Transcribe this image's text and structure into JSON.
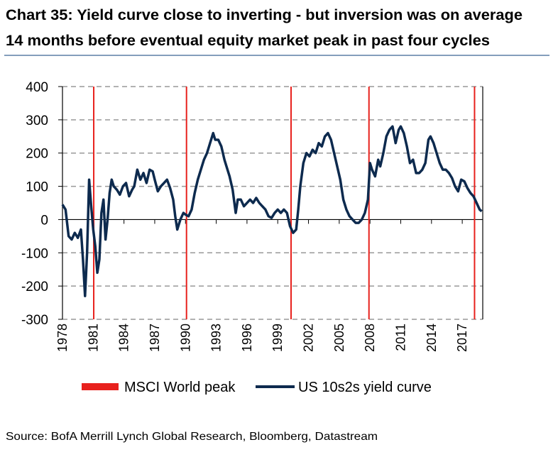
{
  "chart_data": {
    "type": "line",
    "title": [
      "Chart 35: Yield curve close to inverting - but inversion was on average",
      "14 months before eventual equity market peak in past four cycles"
    ],
    "source": "Source: BofA Merrill Lynch Global Research, Bloomberg, Datastream",
    "xlim": [
      1978,
      2019
    ],
    "xticks": [
      1978,
      1981,
      1984,
      1987,
      1990,
      1993,
      1996,
      1999,
      2002,
      2005,
      2008,
      2011,
      2014,
      2017
    ],
    "ylim": [
      -300,
      400
    ],
    "yticks": [
      -300,
      -200,
      -100,
      0,
      100,
      200,
      300,
      400
    ],
    "grid": true,
    "legend": "bottom",
    "series": [
      {
        "name": "MSCI World peak",
        "type": "vline",
        "color": "#e8211d",
        "x": [
          1981.05,
          1990.1,
          2000.3,
          2007.9,
          2018.2
        ]
      },
      {
        "name": "US 10s2s  yield curve",
        "type": "line",
        "color": "#0d2a4e",
        "x": [
          1978.0,
          1978.3,
          1978.6,
          1978.9,
          1979.2,
          1979.5,
          1979.8,
          1980.0,
          1980.2,
          1980.4,
          1980.6,
          1980.8,
          1981.0,
          1981.2,
          1981.4,
          1981.6,
          1981.8,
          1982.0,
          1982.2,
          1982.4,
          1982.6,
          1982.8,
          1983.0,
          1983.3,
          1983.6,
          1983.9,
          1984.2,
          1984.5,
          1984.8,
          1985.0,
          1985.3,
          1985.6,
          1985.9,
          1986.2,
          1986.5,
          1986.8,
          1987.0,
          1987.3,
          1987.6,
          1987.9,
          1988.2,
          1988.5,
          1988.8,
          1989.0,
          1989.2,
          1989.5,
          1989.8,
          1990.0,
          1990.3,
          1990.6,
          1990.9,
          1991.2,
          1991.5,
          1991.8,
          1992.1,
          1992.4,
          1992.7,
          1992.9,
          1993.2,
          1993.5,
          1993.8,
          1994.0,
          1994.3,
          1994.6,
          1994.9,
          1995.1,
          1995.4,
          1995.7,
          1996.0,
          1996.3,
          1996.6,
          1996.9,
          1997.2,
          1997.5,
          1997.8,
          1998.1,
          1998.4,
          1998.7,
          1999.0,
          1999.3,
          1999.6,
          1999.9,
          2000.2,
          2000.5,
          2000.8,
          2001.0,
          2001.2,
          2001.5,
          2001.8,
          2002.1,
          2002.4,
          2002.7,
          2003.0,
          2003.3,
          2003.6,
          2003.9,
          2004.2,
          2004.5,
          2004.8,
          2005.1,
          2005.4,
          2005.7,
          2006.0,
          2006.3,
          2006.6,
          2006.9,
          2007.2,
          2007.5,
          2007.8,
          2008.0,
          2008.2,
          2008.5,
          2008.8,
          2009.0,
          2009.3,
          2009.6,
          2009.9,
          2010.2,
          2010.5,
          2010.8,
          2011.0,
          2011.3,
          2011.6,
          2011.9,
          2012.2,
          2012.5,
          2012.8,
          2013.1,
          2013.4,
          2013.7,
          2013.9,
          2014.2,
          2014.5,
          2014.8,
          2015.1,
          2015.4,
          2015.7,
          2016.0,
          2016.3,
          2016.6,
          2016.9,
          2017.2,
          2017.5,
          2017.8,
          2018.1,
          2018.4,
          2018.7,
          2018.9
        ],
        "values": [
          45,
          30,
          -50,
          -60,
          -40,
          -55,
          -30,
          -120,
          -230,
          -100,
          120,
          40,
          -30,
          -80,
          -160,
          -120,
          20,
          60,
          -60,
          0,
          80,
          120,
          100,
          90,
          75,
          100,
          110,
          70,
          90,
          100,
          150,
          120,
          140,
          110,
          150,
          145,
          120,
          85,
          100,
          110,
          120,
          95,
          60,
          10,
          -30,
          0,
          20,
          15,
          10,
          30,
          80,
          120,
          150,
          180,
          200,
          230,
          260,
          240,
          240,
          220,
          180,
          160,
          130,
          90,
          20,
          60,
          60,
          40,
          50,
          60,
          50,
          65,
          50,
          40,
          30,
          10,
          5,
          20,
          30,
          20,
          30,
          20,
          -20,
          -40,
          -30,
          30,
          100,
          170,
          200,
          190,
          210,
          200,
          230,
          220,
          250,
          260,
          240,
          200,
          160,
          120,
          60,
          30,
          10,
          0,
          -10,
          -10,
          0,
          20,
          60,
          170,
          150,
          130,
          180,
          160,
          200,
          250,
          270,
          280,
          230,
          270,
          280,
          260,
          220,
          170,
          180,
          140,
          140,
          150,
          170,
          240,
          250,
          230,
          200,
          170,
          150,
          150,
          140,
          125,
          100,
          85,
          120,
          115,
          95,
          80,
          70,
          50,
          30,
          25
        ]
      }
    ]
  }
}
